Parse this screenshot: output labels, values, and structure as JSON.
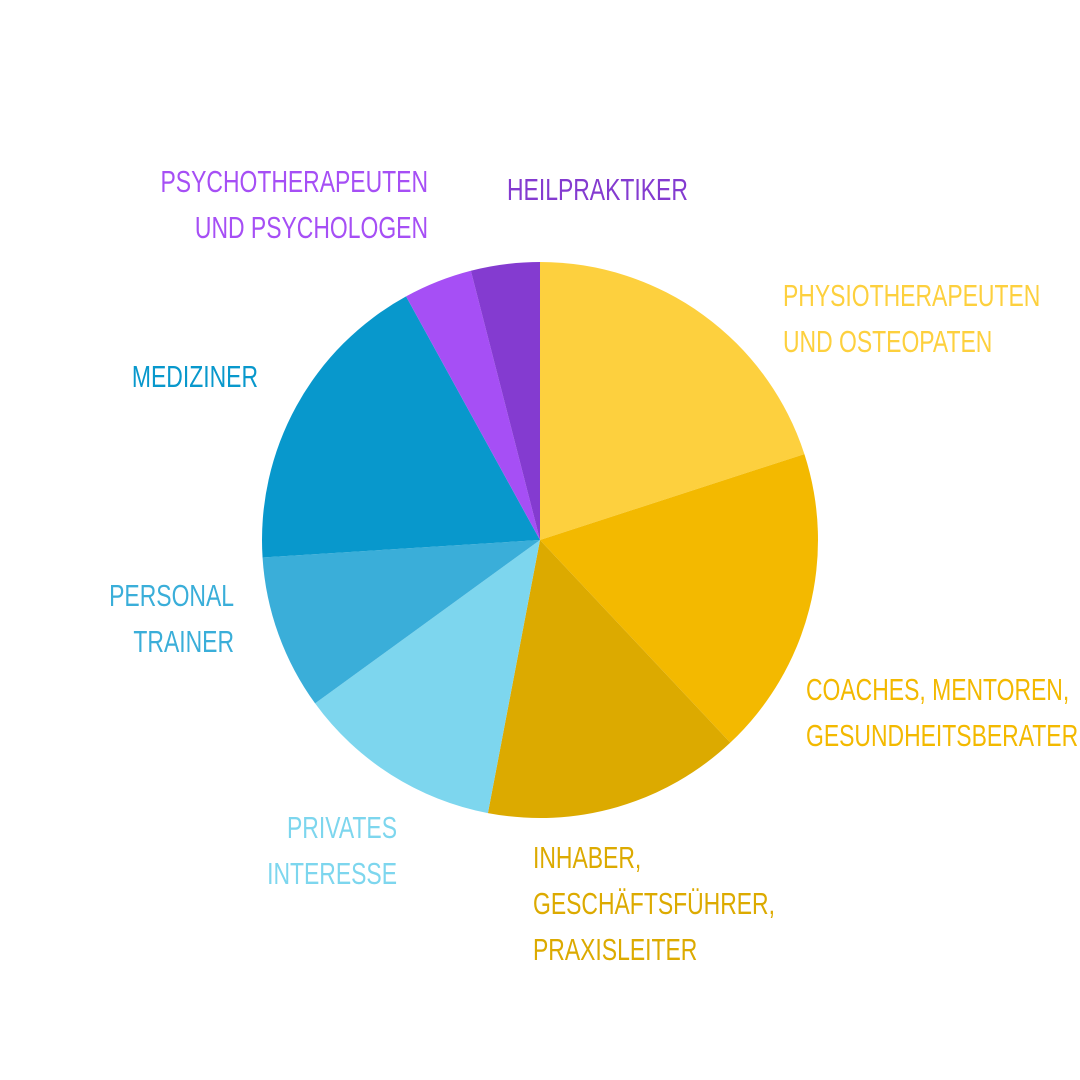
{
  "chart_data": {
    "type": "pie",
    "categories": [
      [
        "PHYSIOTHERAPEUTEN",
        "UND OSTEOPATEN"
      ],
      [
        "COACHES, MENTOREN,",
        "GESUNDHEITSBERATER"
      ],
      [
        "INHABER,",
        "GESCHÄFTSFÜHRER,",
        "PRAXISLEITER"
      ],
      [
        "PRIVATES",
        "INTERESSE"
      ],
      [
        "PERSONAL",
        "TRAINER"
      ],
      [
        "MEDIZINER"
      ],
      [
        "PSYCHOTHERAPEUTEN",
        "UND PSYCHOLOGEN"
      ],
      [
        "HEILPRAKTIKER"
      ]
    ],
    "values": [
      20,
      18,
      15,
      12,
      9,
      18,
      4,
      4
    ],
    "colors": [
      "#fdd03e",
      "#f3b900",
      "#dcaa00",
      "#7dd6ee",
      "#3aaed9",
      "#0898cc",
      "#a64ff5",
      "#843bd0"
    ]
  }
}
